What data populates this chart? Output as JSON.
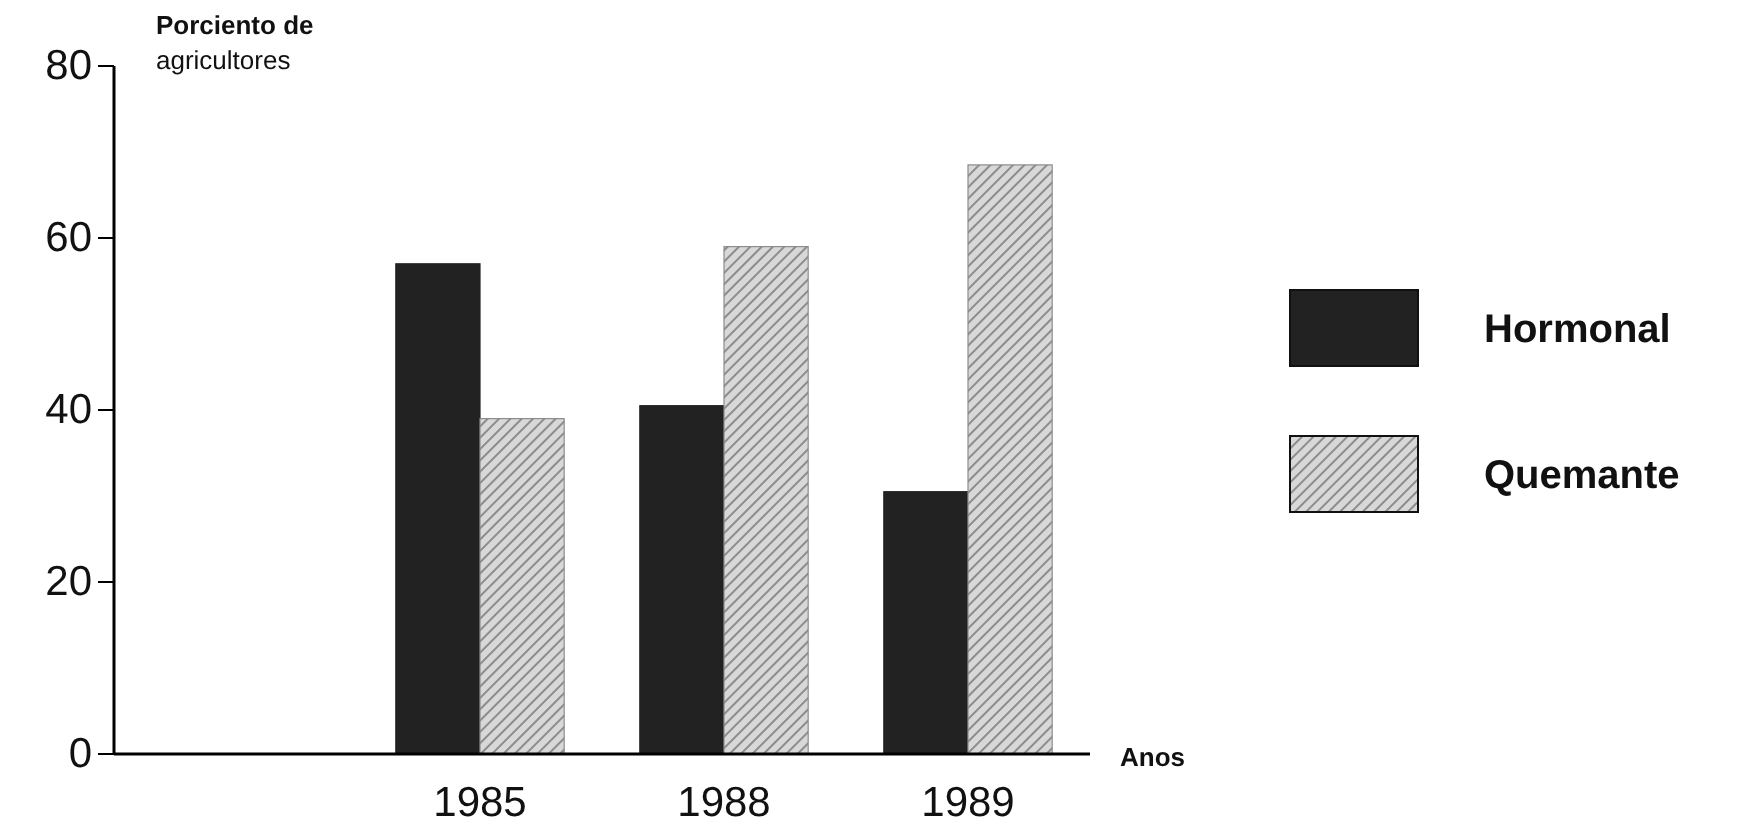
{
  "chart_data": {
    "type": "bar",
    "ylabel": "Porciento de agricultores",
    "xlabel": "Anos",
    "categories": [
      null,
      "1985",
      "1988",
      "1989"
    ],
    "series": [
      {
        "name": "Hormonal",
        "color": "#222222",
        "values": [
          null,
          57,
          40.5,
          30.5
        ]
      },
      {
        "name": "Quemante",
        "color": "#8c8c8c",
        "values": [
          null,
          39,
          59,
          68.5
        ]
      }
    ],
    "ylim": [
      0,
      80
    ],
    "yticks": [
      0,
      20,
      40,
      60,
      80
    ],
    "grid": false,
    "legend": "right"
  }
}
